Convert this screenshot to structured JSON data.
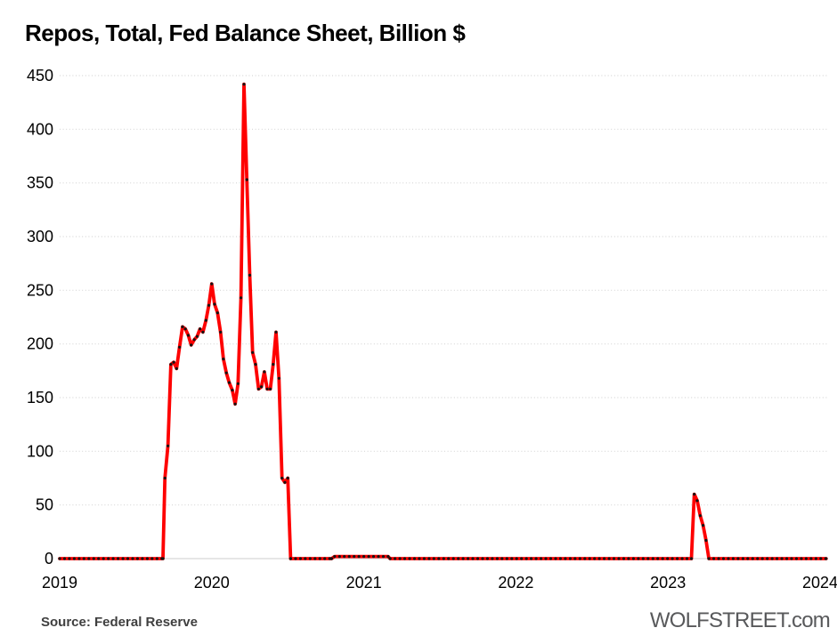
{
  "title": "Repos, Total, Fed Balance Sheet, Billion $",
  "footer": {
    "source": "Source: Federal Reserve",
    "brand": "WOLFSTREET.com"
  },
  "chart_data": {
    "type": "line",
    "title": "Repos, Total, Fed Balance Sheet, Billion $",
    "xlabel": "",
    "ylabel": "",
    "units": "Billion $",
    "series_name": "Repos, total, Fed balance sheet",
    "x_ticks": [
      2019,
      2020,
      2021,
      2022,
      2023,
      2024
    ],
    "y_ticks": [
      0,
      50,
      100,
      150,
      200,
      250,
      300,
      350,
      400,
      450
    ],
    "xlim": [
      2019,
      2024.047
    ],
    "ylim": [
      0,
      450
    ],
    "grid": "horizontal-dotted",
    "legend": "none",
    "colors": {
      "line": "#fe0000",
      "marker": "#141414",
      "grid": "#d6d6d6"
    },
    "marker_step_years": 0.032,
    "zero_runs": [
      [
        2019.0,
        2019.679
      ],
      [
        2020.519,
        2020.788
      ],
      [
        2021.173,
        2023.154
      ],
      [
        2023.269,
        2024.04
      ]
    ],
    "points": [
      [
        2019.679,
        0
      ],
      [
        2019.692,
        75
      ],
      [
        2019.712,
        105
      ],
      [
        2019.731,
        181
      ],
      [
        2019.75,
        183
      ],
      [
        2019.769,
        177
      ],
      [
        2019.788,
        197
      ],
      [
        2019.808,
        216
      ],
      [
        2019.827,
        214
      ],
      [
        2019.846,
        208
      ],
      [
        2019.865,
        199
      ],
      [
        2019.885,
        204
      ],
      [
        2019.904,
        207
      ],
      [
        2019.923,
        214
      ],
      [
        2019.942,
        211
      ],
      [
        2019.962,
        222
      ],
      [
        2019.981,
        236
      ],
      [
        2020.0,
        256
      ],
      [
        2020.019,
        237
      ],
      [
        2020.038,
        229
      ],
      [
        2020.058,
        211
      ],
      [
        2020.077,
        186
      ],
      [
        2020.096,
        173
      ],
      [
        2020.115,
        164
      ],
      [
        2020.135,
        157
      ],
      [
        2020.154,
        144
      ],
      [
        2020.173,
        163
      ],
      [
        2020.192,
        243
      ],
      [
        2020.212,
        442
      ],
      [
        2020.231,
        353
      ],
      [
        2020.25,
        264
      ],
      [
        2020.269,
        192
      ],
      [
        2020.288,
        181
      ],
      [
        2020.308,
        158
      ],
      [
        2020.327,
        160
      ],
      [
        2020.346,
        174
      ],
      [
        2020.365,
        158
      ],
      [
        2020.385,
        158
      ],
      [
        2020.404,
        181
      ],
      [
        2020.423,
        211
      ],
      [
        2020.442,
        168
      ],
      [
        2020.462,
        75
      ],
      [
        2020.481,
        71
      ],
      [
        2020.5,
        75
      ],
      [
        2020.519,
        0
      ],
      [
        2020.788,
        0
      ],
      [
        2020.808,
        2
      ],
      [
        2020.84,
        2
      ],
      [
        2020.872,
        2
      ],
      [
        2020.904,
        2
      ],
      [
        2020.936,
        2
      ],
      [
        2020.968,
        2
      ],
      [
        2021.0,
        2
      ],
      [
        2021.032,
        2
      ],
      [
        2021.064,
        2
      ],
      [
        2021.096,
        2
      ],
      [
        2021.128,
        2
      ],
      [
        2021.16,
        2
      ],
      [
        2021.173,
        0
      ],
      [
        2023.154,
        0
      ],
      [
        2023.173,
        60
      ],
      [
        2023.192,
        54
      ],
      [
        2023.212,
        40
      ],
      [
        2023.231,
        31
      ],
      [
        2023.25,
        17
      ],
      [
        2023.269,
        0
      ]
    ]
  }
}
